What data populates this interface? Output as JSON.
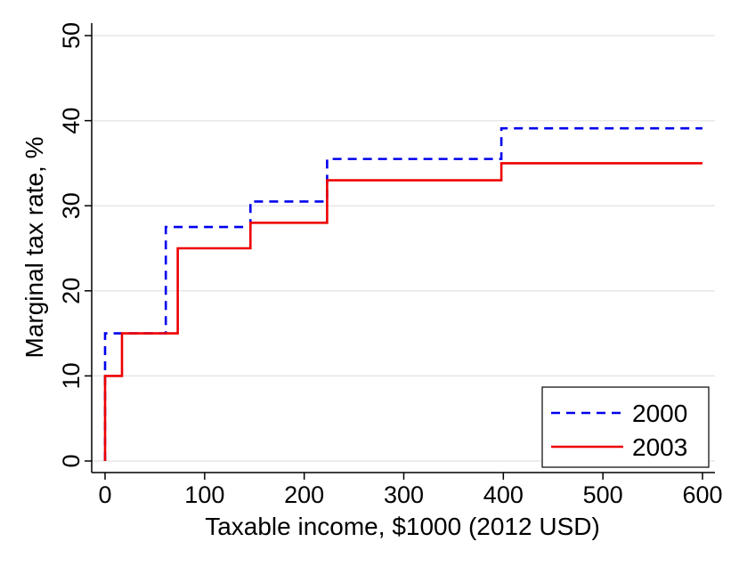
{
  "chart_data": {
    "type": "line",
    "step": true,
    "title": "",
    "xlabel": "Taxable income, $1000 (2012 USD)",
    "ylabel": "Marginal tax rate, %",
    "xlim": [
      0,
      600
    ],
    "ylim": [
      0,
      50
    ],
    "x_ticks": [
      0,
      100,
      200,
      300,
      400,
      500,
      600
    ],
    "y_ticks": [
      0,
      10,
      20,
      30,
      40,
      50
    ],
    "x_tick_labels": [
      "0",
      "100",
      "200",
      "300",
      "400",
      "500",
      "600"
    ],
    "y_tick_labels": [
      "0",
      "10",
      "20",
      "30",
      "40",
      "50"
    ],
    "grid": "horizontal",
    "legend_position": "bottom-right",
    "series": [
      {
        "name": "2000",
        "color": "#0000ee",
        "dash": "dashed",
        "points": [
          [
            0,
            0
          ],
          [
            0,
            15
          ],
          [
            61,
            15
          ],
          [
            61,
            27.5
          ],
          [
            146,
            27.5
          ],
          [
            146,
            30.5
          ],
          [
            223,
            30.5
          ],
          [
            223,
            35.5
          ],
          [
            398,
            35.5
          ],
          [
            398,
            39.1
          ],
          [
            600,
            39.1
          ]
        ]
      },
      {
        "name": "2003",
        "color": "#ee0000",
        "dash": "solid",
        "points": [
          [
            0,
            0
          ],
          [
            0,
            10
          ],
          [
            17,
            10
          ],
          [
            17,
            15
          ],
          [
            73,
            15
          ],
          [
            73,
            25
          ],
          [
            146,
            25
          ],
          [
            146,
            28
          ],
          [
            223,
            28
          ],
          [
            223,
            33
          ],
          [
            398,
            33
          ],
          [
            398,
            35
          ],
          [
            600,
            35
          ]
        ]
      }
    ]
  }
}
